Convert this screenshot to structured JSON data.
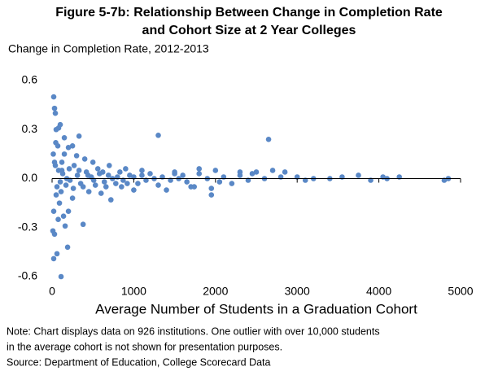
{
  "chart_data": {
    "type": "scatter",
    "title": [
      "Figure 5-7b: Relationship Between Change in Completion Rate",
      "and Cohort Size at 2 Year Colleges"
    ],
    "y_label": "Change in Completion Rate, 2012-2013",
    "x_label": "Average Number of Students in a Graduation Cohort",
    "notes": [
      "Note: Chart displays data on 926 institutions. One outlier with over 10,000 students",
      "in the average cohort is not shown for presentation purposes.",
      "Source: Department of Education, College Scorecard Data"
    ],
    "color": "#5a88c6",
    "x": [
      20,
      30,
      40,
      50,
      80,
      100,
      330,
      1300,
      2650,
      20,
      60,
      110,
      190,
      160,
      380,
      30,
      10,
      200,
      140,
      250,
      200,
      500,
      700,
      900,
      1100,
      1500,
      1800,
      2000,
      2300,
      2500,
      2700,
      2850,
      3000,
      3200,
      3400,
      3550,
      3750,
      3900,
      4050,
      4100,
      4250,
      4800,
      4850,
      3100,
      2200,
      1700,
      1950,
      1400,
      1000,
      720,
      1950,
      1740,
      1800,
      1600,
      1200,
      1050,
      850,
      600,
      450,
      400,
      300,
      250,
      150,
      120,
      90,
      70,
      50,
      40,
      60,
      80,
      100,
      130,
      170,
      210,
      260,
      310,
      350,
      420,
      480,
      530,
      580,
      640,
      690,
      740,
      800,
      870,
      950,
      1150,
      1250,
      1350,
      1450,
      1550,
      2100,
      2400,
      2600,
      2800,
      150,
      110,
      30,
      20,
      45,
      15,
      75,
      120,
      180,
      220,
      270,
      330,
      380,
      440,
      510,
      560,
      620,
      660,
      780,
      830,
      920,
      1000,
      1100,
      1300,
      1500,
      1650,
      1900,
      2050,
      2300,
      2450
    ],
    "y": [
      0.5,
      0.43,
      0.4,
      0.3,
      0.31,
      0.33,
      0.26,
      0.265,
      0.24,
      -0.49,
      -0.46,
      -0.6,
      -0.42,
      -0.29,
      -0.28,
      -0.34,
      -0.32,
      -0.2,
      -0.23,
      0.2,
      0.19,
      0.1,
      0.08,
      0.06,
      0.05,
      0.04,
      0.06,
      0.05,
      0.04,
      0.04,
      0.05,
      0.04,
      0.01,
      0,
      0,
      0.01,
      0.02,
      -0.01,
      0.01,
      0,
      0.01,
      -0.01,
      0,
      -0.01,
      -0.03,
      -0.05,
      -0.06,
      -0.07,
      -0.07,
      -0.13,
      -0.1,
      -0.05,
      0.03,
      0.02,
      0.03,
      -0.03,
      -0.05,
      -0.09,
      -0.08,
      0.12,
      0.14,
      -0.12,
      0.15,
      0.1,
      -0.15,
      0.2,
      -0.1,
      0.08,
      -0.05,
      0.05,
      -0.02,
      0.03,
      -0.04,
      0.06,
      -0.06,
      0.02,
      -0.03,
      0.04,
      0.01,
      -0.04,
      0.03,
      -0.02,
      0.02,
      0,
      0.01,
      -0.01,
      0.02,
      -0.01,
      0,
      0.01,
      -0.01,
      0,
      0.01,
      -0.01,
      0,
      0.01,
      0.25,
      -0.08,
      0.1,
      -0.2,
      0.22,
      0.15,
      -0.25,
      0.05,
      0,
      -0.01,
      0.08,
      0.05,
      -0.05,
      0.02,
      -0.01,
      0.06,
      0.04,
      -0.05,
      -0.03,
      0.04,
      -0.03,
      0.01,
      0.02,
      -0.04,
      0.03,
      -0.02,
      0,
      -0.02,
      0.02,
      0.03
    ],
    "xlim": [
      0,
      5000
    ],
    "xticks": [
      0,
      1000,
      2000,
      3000,
      4000,
      5000
    ],
    "ylim": [
      -0.6,
      0.6
    ],
    "yticks": [
      0.6,
      0.3,
      {
        "value": 0,
        "label": "0.0"
      },
      -0.3,
      -0.6
    ]
  }
}
